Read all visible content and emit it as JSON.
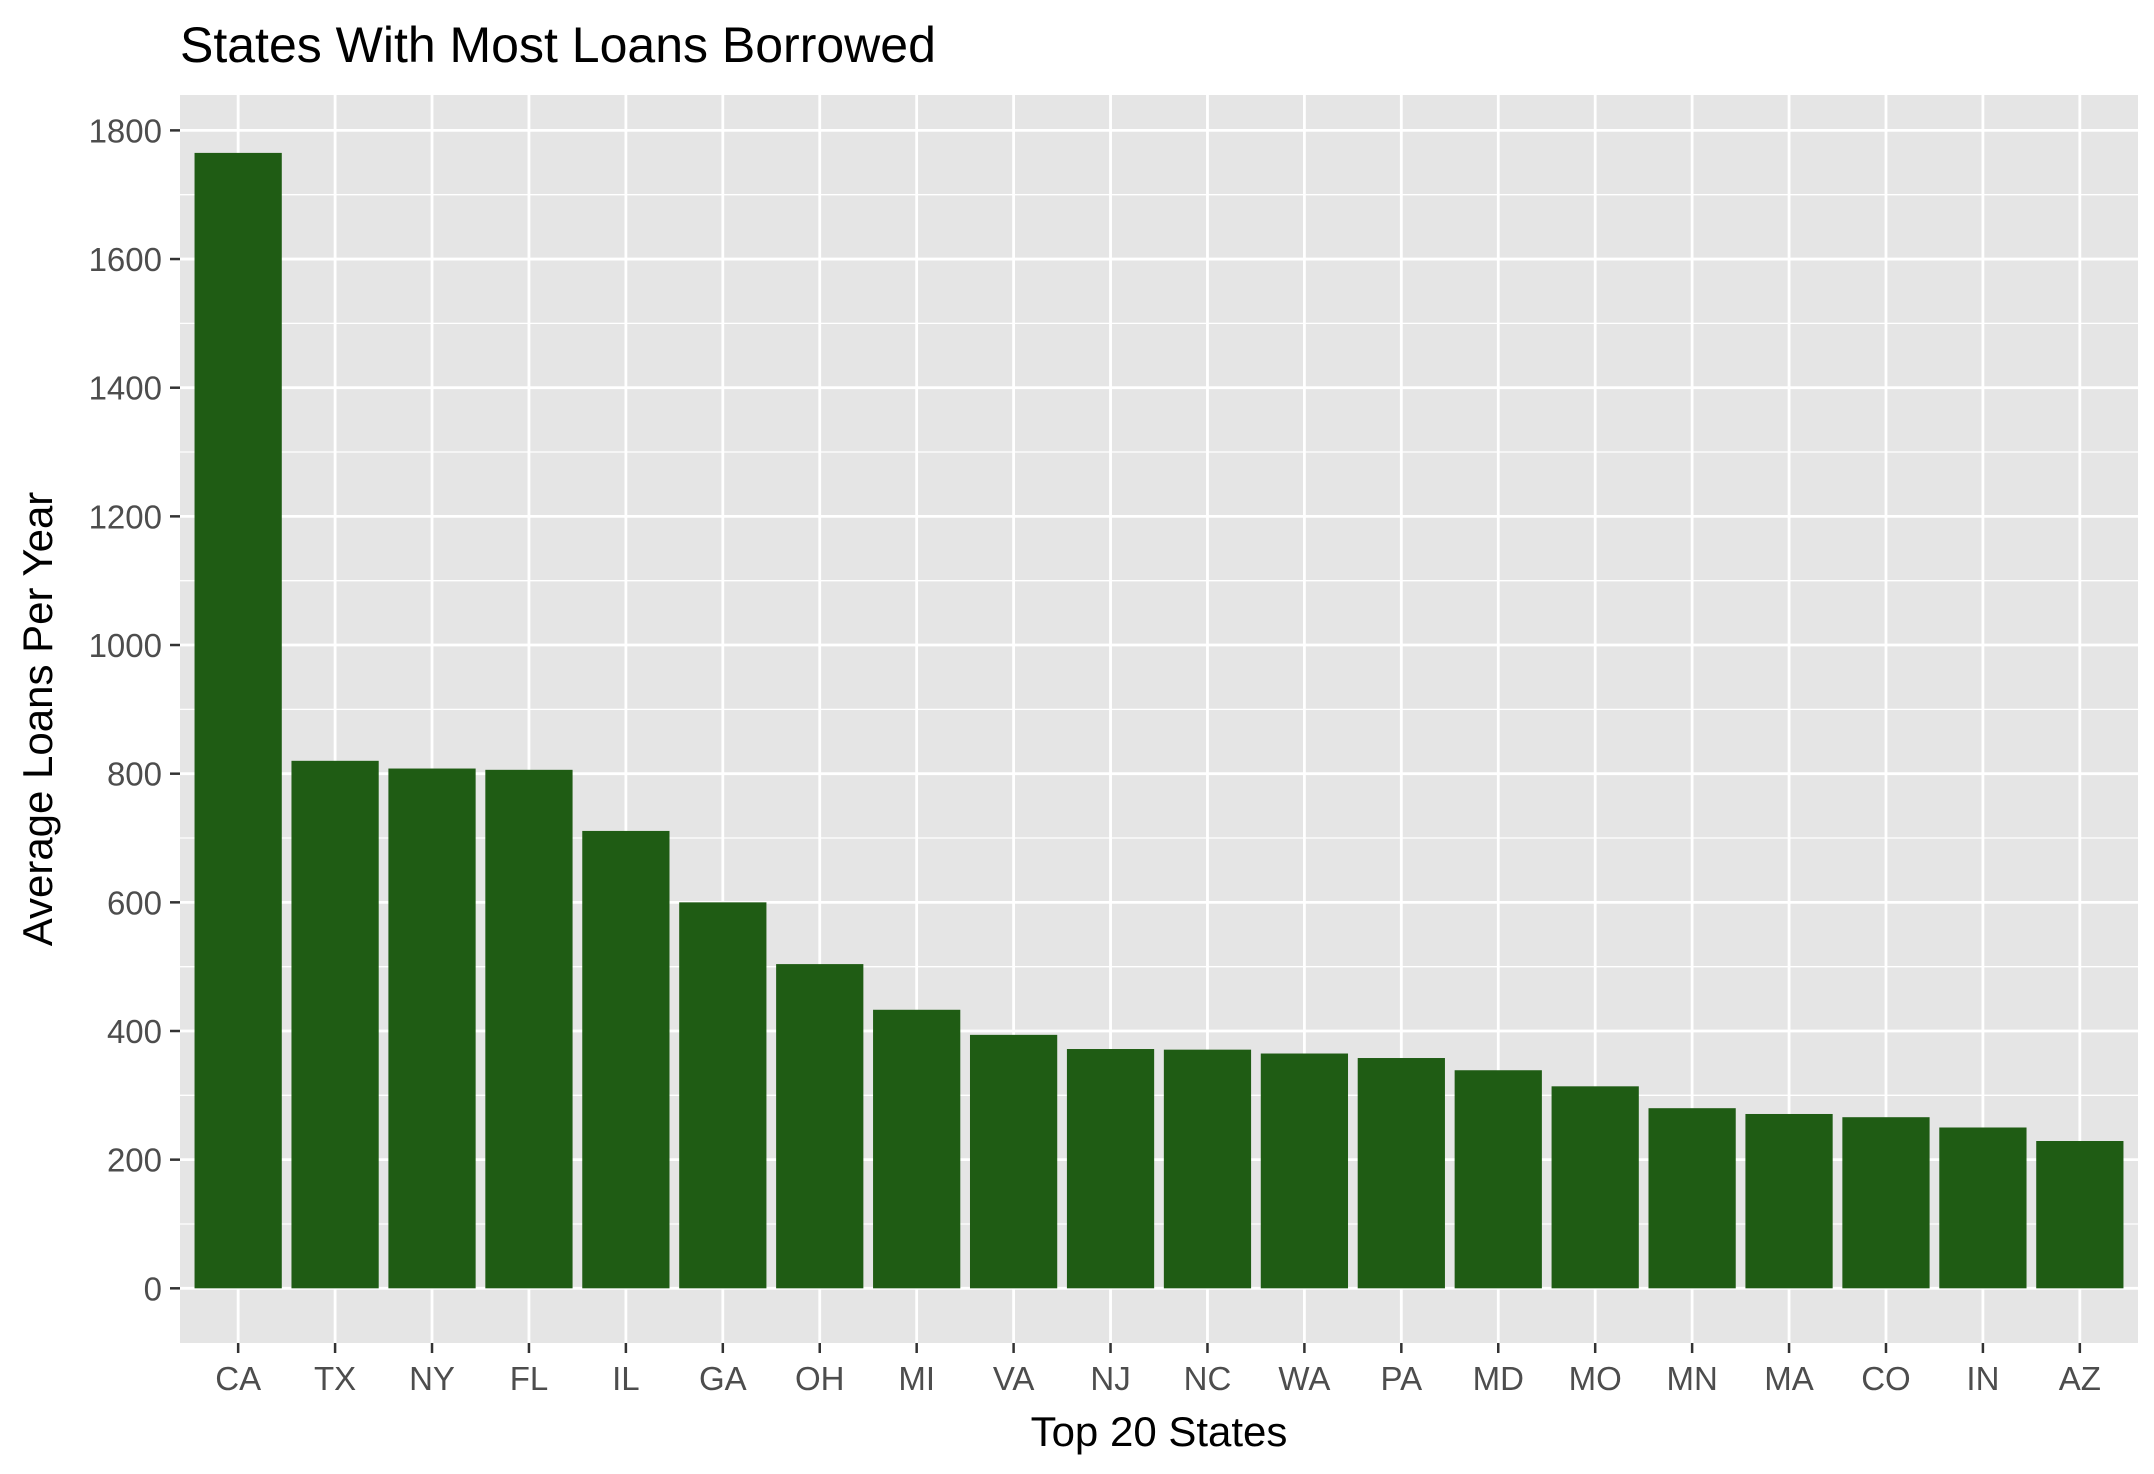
{
  "chart_data": {
    "type": "bar",
    "title": "States With Most Loans Borrowed",
    "xlabel": "Top 20 States",
    "ylabel": "Average Loans Per Year",
    "categories": [
      "CA",
      "TX",
      "NY",
      "FL",
      "IL",
      "GA",
      "OH",
      "MI",
      "VA",
      "NJ",
      "NC",
      "WA",
      "PA",
      "MD",
      "MO",
      "MN",
      "MA",
      "CO",
      "IN",
      "AZ"
    ],
    "values": [
      1765,
      820,
      808,
      806,
      711,
      600,
      504,
      433,
      394,
      372,
      371,
      365,
      358,
      339,
      314,
      280,
      271,
      266,
      250,
      229
    ],
    "ylim": [
      -85,
      1855
    ],
    "yticks": [
      0,
      200,
      400,
      600,
      800,
      1000,
      1200,
      1400,
      1600,
      1800
    ],
    "ytick_labels": [
      "0",
      "200",
      "400",
      "600",
      "800",
      "1000",
      "1200",
      "1400",
      "1600",
      "1800"
    ],
    "grid": true,
    "legend": "none",
    "colors": {
      "bar": "#1f5c14",
      "panel": "#e5e5e5",
      "grid": "#ffffff"
    }
  }
}
